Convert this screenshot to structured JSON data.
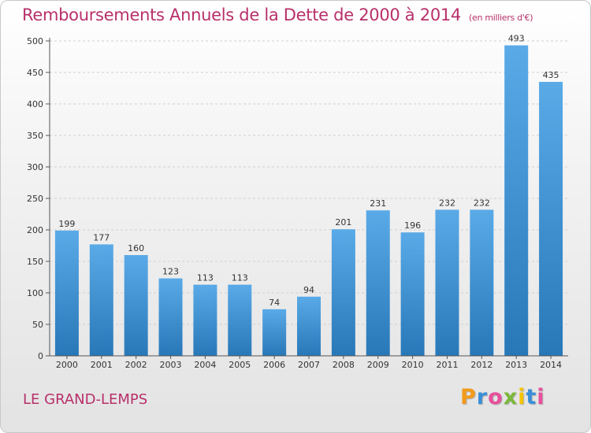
{
  "header": {
    "title": "Remboursements Annuels de la Dette de 2000 à 2014",
    "unit": "(en milliers d'€)"
  },
  "footer": {
    "place": "LE GRAND-LEMPS",
    "logo_letters": [
      "P",
      "r",
      "o",
      "x",
      "i",
      "t",
      "i"
    ],
    "logo_colors": [
      "#f29a1a",
      "#3a8fd6",
      "#e84f9c",
      "#7ab83a",
      "#f5c400",
      "#3a8fd6",
      "#e84f9c"
    ]
  },
  "colors": {
    "bar_light": "#5aaae8",
    "bar_dark": "#2878b8",
    "title": "#b8306a",
    "grid": "#cfcfcf",
    "axis": "#555555"
  },
  "chart_data": {
    "type": "bar",
    "title": "Remboursements Annuels de la Dette de 2000 à 2014",
    "xlabel": "",
    "ylabel": "",
    "ylim": [
      0,
      500
    ],
    "yticks": [
      0,
      50,
      100,
      150,
      200,
      250,
      300,
      350,
      400,
      450,
      500
    ],
    "categories": [
      "2000",
      "2001",
      "2002",
      "2003",
      "2004",
      "2005",
      "2006",
      "2007",
      "2008",
      "2009",
      "2010",
      "2011",
      "2012",
      "2013",
      "2014"
    ],
    "values": [
      199,
      177,
      160,
      123,
      113,
      113,
      74,
      94,
      201,
      231,
      196,
      232,
      232,
      493,
      435
    ]
  }
}
